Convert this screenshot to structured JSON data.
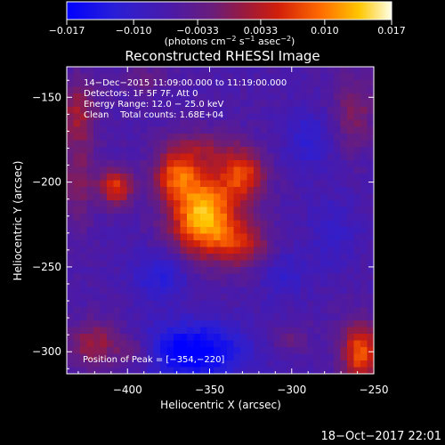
{
  "chart_data": {
    "type": "heatmap",
    "title": "Reconstructed RHESSI Image",
    "xlabel": "Heliocentric X (arcsec)",
    "ylabel": "Heliocentric Y (arcsec)",
    "xlim": [
      -437,
      -250
    ],
    "ylim": [
      -313,
      -132
    ],
    "x_ticks": [
      -400,
      -350,
      -300,
      -250
    ],
    "y_ticks": [
      -150,
      -200,
      -250,
      -300
    ],
    "x_tick_labels": [
      "−400",
      "−350",
      "−300",
      "−250"
    ],
    "y_tick_labels": [
      "−150",
      "−200",
      "−250",
      "−300"
    ],
    "colorbar": {
      "min": -0.017,
      "max": 0.017,
      "ticks": [
        -0.017,
        -0.01,
        -0.0033,
        0.0033,
        0.01,
        0.017
      ],
      "tick_labels": [
        "−0.017",
        "−0.010",
        "−0.0033",
        "0.0033",
        "0.010",
        "0.017"
      ],
      "label_main": "(photons cm",
      "label_sup1": "−2",
      "label_mid1": " s",
      "label_sup2": "−1",
      "label_mid2": " asec",
      "label_sup3": "−2",
      "label_end": ")"
    },
    "annotations": [
      "14−Dec−2015 11:09:00.000 to 11:19:00.000",
      "Detectors: 1F 5F 7F, Att 0",
      "Energy Range: 12.0 − 25.0 keV",
      "Clean    Total counts: 1.68E+04"
    ],
    "peak_label": "Position of Peak = [−354,−220]",
    "peak": [
      -354,
      -220
    ],
    "sources": [
      {
        "x": -354,
        "y": -220,
        "sx": 14,
        "sy": 16,
        "amp": 0.02
      },
      {
        "x": -370,
        "y": -196,
        "sx": 10,
        "sy": 10,
        "amp": 0.012
      },
      {
        "x": -330,
        "y": -196,
        "sx": 10,
        "sy": 10,
        "amp": 0.0125
      },
      {
        "x": -330,
        "y": -236,
        "sx": 12,
        "sy": 10,
        "amp": 0.009
      },
      {
        "x": -354,
        "y": -180,
        "sx": 16,
        "sy": 8,
        "amp": 0.006
      },
      {
        "x": -407,
        "y": -203,
        "sx": 7,
        "sy": 8,
        "amp": 0.0125
      },
      {
        "x": -430,
        "y": -158,
        "sx": 8,
        "sy": 14,
        "amp": 0.008
      },
      {
        "x": -430,
        "y": -200,
        "sx": 7,
        "sy": 18,
        "amp": 0.006
      },
      {
        "x": -420,
        "y": -296,
        "sx": 12,
        "sy": 10,
        "amp": 0.008
      },
      {
        "x": -395,
        "y": -300,
        "sx": 8,
        "sy": 7,
        "amp": 0.005
      },
      {
        "x": -258,
        "y": -300,
        "sx": 8,
        "sy": 12,
        "amp": 0.015
      },
      {
        "x": -262,
        "y": -158,
        "sx": 9,
        "sy": 16,
        "amp": 0.006
      },
      {
        "x": -300,
        "y": -292,
        "sx": 8,
        "sy": 6,
        "amp": 0.004
      },
      {
        "x": -390,
        "y": -140,
        "sx": 10,
        "sy": 6,
        "amp": 0.004
      },
      {
        "x": -360,
        "y": -300,
        "sx": 22,
        "sy": 12,
        "amp": -0.012
      },
      {
        "x": -380,
        "y": -255,
        "sx": 12,
        "sy": 10,
        "amp": -0.006
      },
      {
        "x": -290,
        "y": -175,
        "sx": 10,
        "sy": 12,
        "amp": -0.005
      },
      {
        "x": -305,
        "y": -255,
        "sx": 10,
        "sy": 10,
        "amp": -0.004
      },
      {
        "x": -275,
        "y": -230,
        "sx": 10,
        "sy": 14,
        "amp": -0.004
      }
    ],
    "grid": false
  },
  "timestamp": "18−Oct−2017 22:01"
}
